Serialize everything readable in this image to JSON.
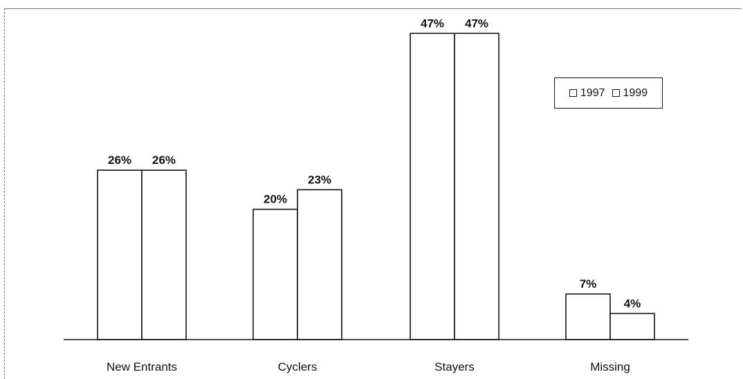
{
  "chart_data": {
    "type": "bar",
    "title": "",
    "xlabel": "",
    "ylabel": "",
    "ylim": [
      0,
      50
    ],
    "grid": false,
    "legend_position": "top-right",
    "categories": [
      "New Entrants",
      "Cyclers",
      "Stayers",
      "Missing"
    ],
    "series": [
      {
        "name": "1997",
        "values": [
          26,
          20,
          47,
          7
        ],
        "labels": [
          "26%",
          "20%",
          "47%",
          "7%"
        ],
        "color": "#ffffff"
      },
      {
        "name": "1999",
        "values": [
          26,
          23,
          47,
          4
        ],
        "labels": [
          "26%",
          "23%",
          "47%",
          "4%"
        ],
        "color": "#ffffff"
      }
    ]
  }
}
